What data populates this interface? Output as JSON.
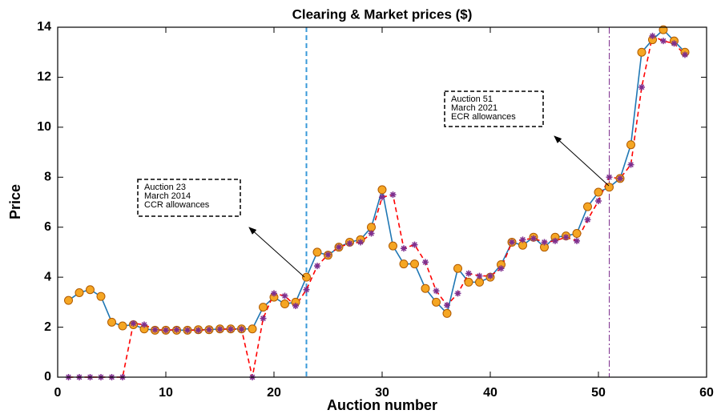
{
  "chart_data": {
    "type": "line",
    "title": "Clearing & Market prices ($)",
    "xlabel": "Auction number",
    "ylabel": "Price",
    "x": [
      1,
      2,
      3,
      4,
      5,
      6,
      7,
      8,
      9,
      10,
      11,
      12,
      13,
      14,
      15,
      16,
      17,
      18,
      19,
      20,
      21,
      22,
      23,
      24,
      25,
      26,
      27,
      28,
      29,
      30,
      31,
      32,
      33,
      34,
      35,
      36,
      37,
      38,
      39,
      40,
      41,
      42,
      43,
      44,
      45,
      46,
      47,
      48,
      49,
      50,
      51,
      52,
      53,
      54,
      55,
      56,
      57,
      58
    ],
    "series": [
      {
        "color": "#1f77b4",
        "line_style": "solid",
        "marker": "circle",
        "marker_color": "#f5a623",
        "values": [
          3.07,
          3.38,
          3.5,
          3.23,
          2.2,
          2.05,
          2.1,
          1.93,
          1.88,
          1.88,
          1.88,
          1.88,
          1.9,
          1.9,
          1.93,
          1.93,
          1.93,
          1.93,
          2.8,
          3.2,
          2.93,
          3.0,
          4.0,
          5.0,
          4.88,
          5.2,
          5.4,
          5.5,
          6.0,
          7.5,
          5.25,
          4.53,
          4.53,
          3.55,
          3.0,
          2.55,
          4.35,
          3.8,
          3.8,
          4.0,
          4.5,
          5.4,
          5.28,
          5.6,
          5.2,
          5.6,
          5.65,
          5.75,
          6.82,
          7.4,
          7.6,
          7.95,
          9.3,
          13.0,
          13.5,
          13.9,
          13.45,
          13.0
        ]
      },
      {
        "color": "#ff0000",
        "line_style": "dashed",
        "marker": "asterisk",
        "marker_color": "#7e2f8e",
        "values": [
          0,
          0,
          0,
          0,
          0,
          0,
          2.15,
          2.1,
          1.9,
          1.88,
          1.9,
          1.88,
          1.88,
          1.9,
          1.92,
          1.92,
          1.92,
          0,
          2.35,
          3.35,
          3.25,
          2.85,
          3.5,
          4.45,
          4.9,
          5.2,
          5.35,
          5.4,
          5.75,
          7.2,
          7.3,
          5.15,
          5.3,
          4.6,
          3.45,
          2.88,
          3.35,
          4.15,
          4.05,
          4.05,
          4.35,
          5.4,
          5.5,
          5.55,
          5.4,
          5.45,
          5.6,
          5.45,
          6.3,
          7.05,
          8.0,
          7.95,
          8.5,
          11.6,
          13.65,
          13.45,
          13.35,
          12.9
        ]
      }
    ],
    "vlines": [
      {
        "x": 23,
        "color": "#3a9ad9",
        "line_style": "dashed"
      },
      {
        "x": 51,
        "color": "#7e2f8e",
        "line_style": "dashdot"
      }
    ],
    "annotations": [
      {
        "lines": [
          "Auction 23",
          "March 2014",
          "CCR allowances"
        ]
      },
      {
        "lines": [
          "Auction 51",
          "March 2021",
          "ECR allowances"
        ]
      }
    ],
    "xlim": [
      0,
      60
    ],
    "xticks": [
      0,
      10,
      20,
      30,
      40,
      50,
      60
    ],
    "ylim": [
      0,
      14
    ],
    "yticks": [
      0,
      2,
      4,
      6,
      8,
      10,
      12,
      14
    ],
    "grid": false
  }
}
